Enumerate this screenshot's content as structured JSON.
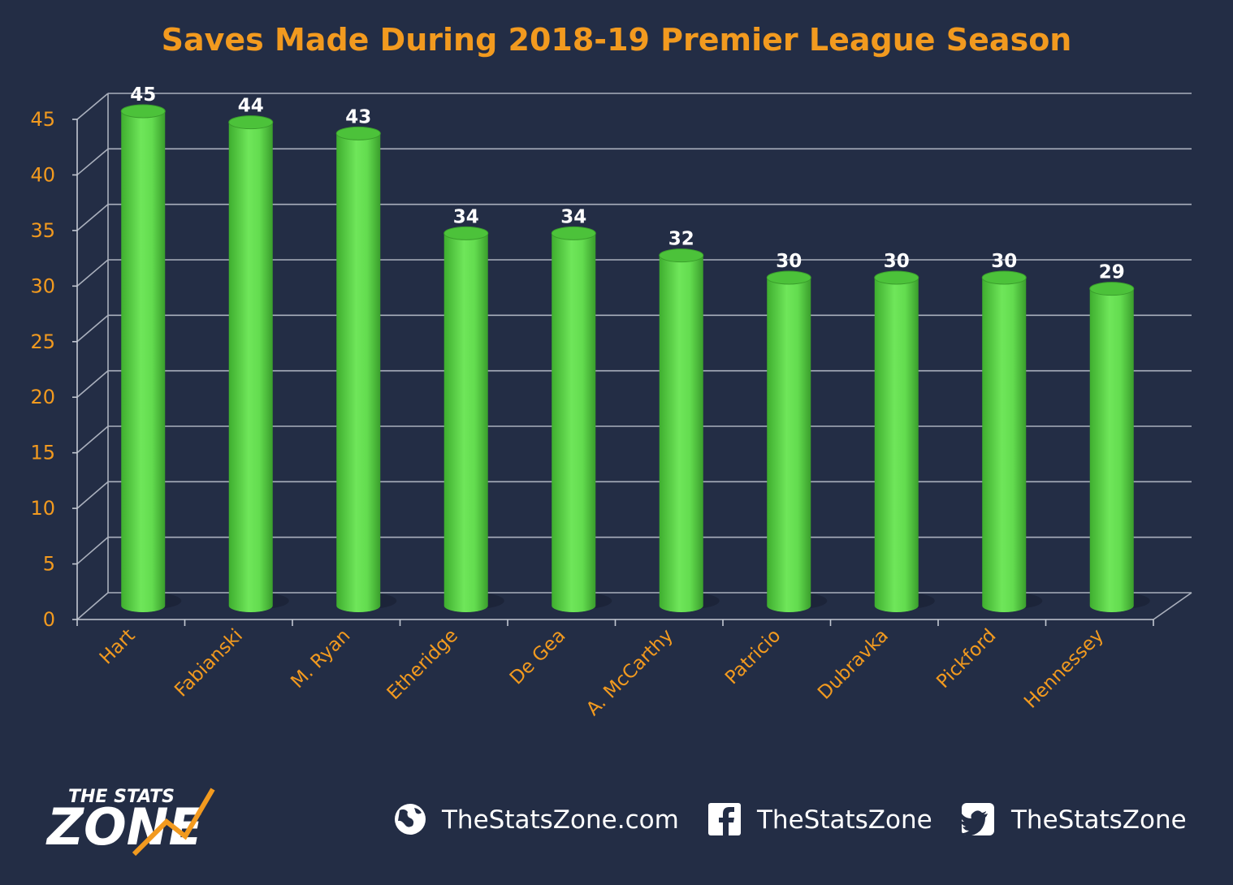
{
  "chart_data": {
    "type": "bar",
    "title": "Saves Made During 2018-19 Premier League Season",
    "categories": [
      "Hart",
      "Fabianski",
      "M. Ryan",
      "Etheridge",
      "De Gea",
      "A. McCarthy",
      "Patricio",
      "Dubravka",
      "Pickford",
      "Hennessey"
    ],
    "values": [
      45,
      44,
      43,
      34,
      34,
      32,
      30,
      30,
      30,
      29
    ],
    "data_labels": [
      "45",
      "44",
      "43",
      "34",
      "34",
      "32",
      "30",
      "30",
      "30",
      "29"
    ],
    "y_ticks": [
      "0",
      "5",
      "10",
      "15",
      "20",
      "25",
      "30",
      "35",
      "40",
      "45"
    ],
    "ylim": [
      0,
      45
    ],
    "grid": true,
    "legend": "none",
    "bar_color": "#5fd84a",
    "text_color": "#f29a1f",
    "background": "#232d45"
  },
  "footer": {
    "brand_top": "THE STATS",
    "brand_bottom": "ZONE",
    "website": "TheStatsZone.com",
    "facebook": "TheStatsZone",
    "twitter": "TheStatsZone"
  }
}
